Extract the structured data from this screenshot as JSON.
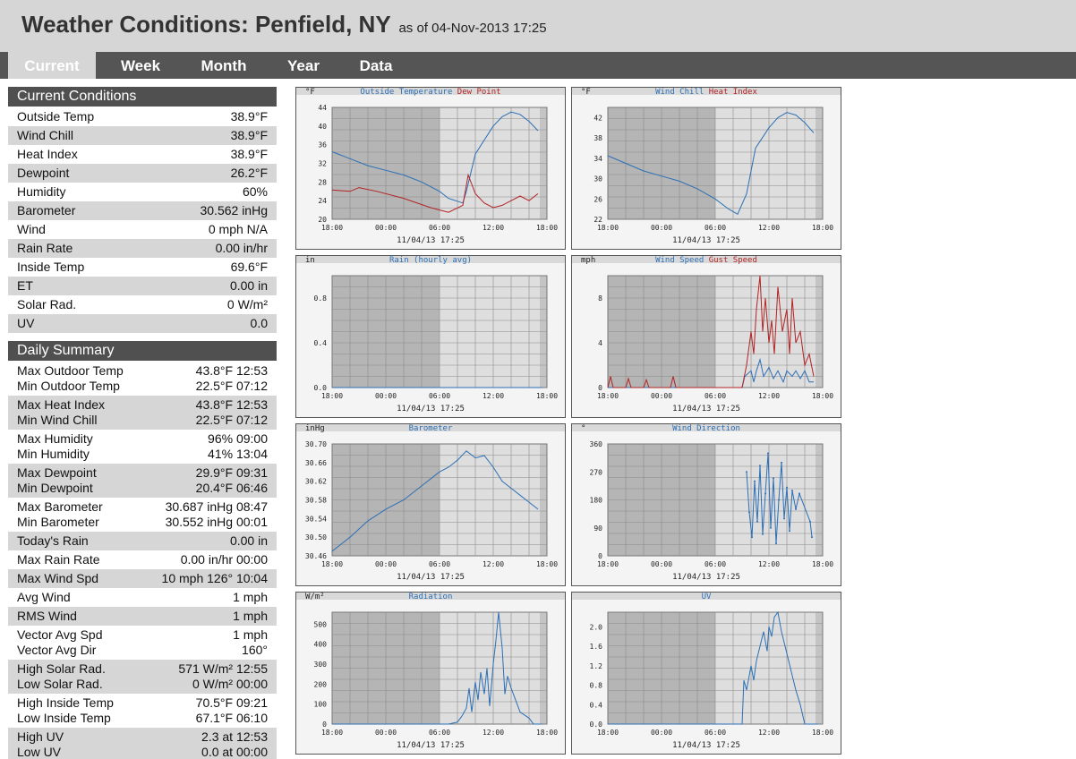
{
  "header": {
    "title": "Weather Conditions: Penfield, NY",
    "as_of": "as of 04-Nov-2013 17:25"
  },
  "nav": {
    "tabs": [
      "Current",
      "Week",
      "Month",
      "Year",
      "Data"
    ],
    "active": "Current"
  },
  "current": {
    "title": "Current Conditions",
    "rows": [
      {
        "label": "Outside Temp",
        "value": "38.9°F"
      },
      {
        "label": "Wind Chill",
        "value": "38.9°F"
      },
      {
        "label": "Heat Index",
        "value": "38.9°F"
      },
      {
        "label": "Dewpoint",
        "value": "26.2°F"
      },
      {
        "label": "Humidity",
        "value": "60%"
      },
      {
        "label": "Barometer",
        "value": "30.562 inHg"
      },
      {
        "label": "Wind",
        "value": "0 mph N/A"
      },
      {
        "label": "Rain Rate",
        "value": "0.00 in/hr"
      },
      {
        "label": "Inside Temp",
        "value": "69.6°F"
      },
      {
        "label": "ET",
        "value": "0.00 in"
      },
      {
        "label": "Solar Rad.",
        "value": "0 W/m²"
      },
      {
        "label": "UV",
        "value": "0.0"
      }
    ]
  },
  "daily": {
    "title": "Daily Summary",
    "groups": [
      {
        "lines": [
          {
            "label": "Max Outdoor Temp",
            "value": "43.8°F 12:53"
          },
          {
            "label": "Min Outdoor Temp",
            "value": "22.5°F 07:12"
          }
        ]
      },
      {
        "lines": [
          {
            "label": "Max Heat Index",
            "value": "43.8°F 12:53"
          },
          {
            "label": "Min Wind Chill",
            "value": "22.5°F 07:12"
          }
        ]
      },
      {
        "lines": [
          {
            "label": "Max Humidity",
            "value": "96% 09:00"
          },
          {
            "label": "Min Humidity",
            "value": "41% 13:04"
          }
        ]
      },
      {
        "lines": [
          {
            "label": "Max Dewpoint",
            "value": "29.9°F 09:31"
          },
          {
            "label": "Min Dewpoint",
            "value": "20.4°F 06:46"
          }
        ]
      },
      {
        "lines": [
          {
            "label": "Max Barometer",
            "value": "30.687 inHg 08:47"
          },
          {
            "label": "Min Barometer",
            "value": "30.552 inHg 00:01"
          }
        ]
      },
      {
        "lines": [
          {
            "label": "Today's Rain",
            "value": "0.00 in"
          }
        ]
      },
      {
        "lines": [
          {
            "label": "Max Rain Rate",
            "value": "0.00 in/hr 00:00"
          }
        ]
      },
      {
        "lines": [
          {
            "label": "Max Wind Spd",
            "value": "10 mph 126° 10:04"
          }
        ]
      },
      {
        "lines": [
          {
            "label": "Avg Wind",
            "value": "1 mph"
          }
        ]
      },
      {
        "lines": [
          {
            "label": "RMS Wind",
            "value": "1 mph"
          }
        ]
      },
      {
        "lines": [
          {
            "label": "Vector Avg Spd",
            "value": "1 mph"
          },
          {
            "label": "Vector Avg Dir",
            "value": "160°"
          }
        ]
      },
      {
        "lines": [
          {
            "label": "High Solar Rad.",
            "value": "571 W/m² 12:55"
          },
          {
            "label": "Low Solar Rad.",
            "value": "0 W/m² 00:00"
          }
        ]
      },
      {
        "lines": [
          {
            "label": "High Inside Temp",
            "value": "70.5°F 09:21"
          },
          {
            "label": "Low Inside Temp",
            "value": "67.1°F 06:10"
          }
        ]
      },
      {
        "lines": [
          {
            "label": "High UV",
            "value": "2.3 at 12:53"
          },
          {
            "label": "Low UV",
            "value": "0.0 at 00:00"
          }
        ]
      }
    ]
  },
  "colors": {
    "blue": "#2b6fb5",
    "red": "#b22222",
    "header_bg": "#d6d6d6",
    "nav_bg": "#555555",
    "section_bg": "#505050"
  },
  "chart_data": [
    {
      "type": "line",
      "title": "",
      "unit": "°F",
      "legend": [
        {
          "name": "Outside Temperature",
          "color": "#2b6fb5"
        },
        {
          "name": "Dew Point",
          "color": "#b22222"
        }
      ],
      "x_ticks": [
        "18:00",
        "00:00",
        "06:00",
        "12:00",
        "18:00"
      ],
      "y_ticks": [
        "20",
        "24",
        "28",
        "32",
        "36",
        "40",
        "44"
      ],
      "ylim": [
        20,
        44
      ],
      "timestamp": "11/04/13 17:25",
      "series": [
        {
          "name": "Outside Temperature",
          "color": "#2b6fb5",
          "x": [
            0,
            2,
            4,
            6,
            8,
            10,
            12,
            13,
            14.6,
            15,
            16,
            18,
            19,
            20,
            21,
            22,
            23
          ],
          "y": [
            34.5,
            33,
            31.5,
            30.5,
            29.5,
            28,
            26,
            24.5,
            23.5,
            26,
            34,
            40,
            42,
            43,
            42.5,
            41,
            39
          ]
        },
        {
          "name": "Dew Point",
          "color": "#b22222",
          "x": [
            0,
            2,
            3,
            5,
            8,
            11,
            13,
            14.6,
            15.2,
            16,
            17,
            18,
            19,
            20,
            21,
            22,
            23
          ],
          "y": [
            26.3,
            26,
            26.8,
            26,
            24.5,
            22.5,
            21.5,
            23,
            29.5,
            25.5,
            23.5,
            22.5,
            23,
            24,
            25,
            24,
            25.5
          ]
        }
      ]
    },
    {
      "type": "line",
      "title": "",
      "unit": "°F",
      "legend": [
        {
          "name": "Wind Chill",
          "color": "#2b6fb5"
        },
        {
          "name": "Heat Index",
          "color": "#b22222"
        }
      ],
      "x_ticks": [
        "18:00",
        "00:00",
        "06:00",
        "12:00",
        "18:00"
      ],
      "y_ticks": [
        "22",
        "26",
        "30",
        "34",
        "38",
        "42"
      ],
      "ylim": [
        22,
        44
      ],
      "timestamp": "11/04/13 17:25",
      "series": [
        {
          "name": "Wind Chill",
          "color": "#2b6fb5",
          "x": [
            0,
            2,
            4,
            6,
            8,
            10,
            12,
            13.5,
            14.5,
            15.5,
            16.5,
            18,
            19,
            20,
            21,
            22,
            23
          ],
          "y": [
            34.5,
            33,
            31.5,
            30.5,
            29.5,
            28,
            26,
            24,
            23,
            27,
            36,
            40,
            42,
            43,
            42.5,
            41,
            39
          ]
        }
      ]
    },
    {
      "type": "line",
      "title": "",
      "unit": "in",
      "legend": [
        {
          "name": "Rain (hourly avg)",
          "color": "#2b6fb5"
        }
      ],
      "x_ticks": [
        "18:00",
        "00:00",
        "06:00",
        "12:00",
        "18:00"
      ],
      "y_ticks": [
        "0.0",
        "0.4",
        "0.8"
      ],
      "ylim": [
        0,
        1.0
      ],
      "timestamp": "11/04/13 17:25",
      "series": [
        {
          "name": "Rain (hourly avg)",
          "color": "#2b6fb5",
          "x": [
            0,
            23.5
          ],
          "y": [
            0,
            0
          ]
        }
      ]
    },
    {
      "type": "line",
      "title": "",
      "unit": "mph",
      "legend": [
        {
          "name": "Wind Speed",
          "color": "#2b6fb5"
        },
        {
          "name": "Gust Speed",
          "color": "#b22222"
        }
      ],
      "x_ticks": [
        "18:00",
        "00:00",
        "06:00",
        "12:00",
        "18:00"
      ],
      "y_ticks": [
        "0",
        "4",
        "8"
      ],
      "ylim": [
        0,
        10
      ],
      "timestamp": "11/04/13 17:25",
      "series": [
        {
          "name": "Wind Speed",
          "color": "#2b6fb5",
          "x": [
            0,
            15,
            15.3,
            16,
            16.3,
            16.6,
            17,
            17.4,
            18,
            18.5,
            19,
            19.6,
            20,
            20.6,
            21,
            21.5,
            22,
            22.5,
            23
          ],
          "y": [
            0,
            0,
            1,
            1.5,
            0.5,
            1.5,
            2.5,
            1,
            1.8,
            0.8,
            1.5,
            0.5,
            1.5,
            1,
            1.5,
            0.8,
            1.5,
            0.5,
            0.5
          ]
        },
        {
          "name": "Gust Speed",
          "color": "#b22222",
          "x": [
            0,
            0.3,
            0.6,
            1,
            2,
            2.3,
            2.6,
            4,
            4.3,
            4.6,
            6,
            7,
            7.3,
            7.6,
            8,
            15,
            15.5,
            16,
            16.3,
            16.6,
            17,
            17.3,
            17.6,
            18,
            18.3,
            18.6,
            19,
            19.5,
            20,
            20.3,
            20.6,
            21,
            21.5,
            22,
            22.5,
            23
          ],
          "y": [
            0,
            1,
            0,
            0,
            0,
            0.8,
            0,
            0,
            0.7,
            0,
            0,
            0,
            1,
            0,
            0,
            0,
            2,
            5,
            3,
            7,
            10,
            5,
            8,
            4,
            6,
            3,
            9,
            5,
            7,
            3,
            8,
            4,
            5,
            2,
            3,
            1
          ]
        }
      ]
    },
    {
      "type": "line",
      "title": "",
      "unit": "inHg",
      "legend": [
        {
          "name": "Barometer",
          "color": "#2b6fb5"
        }
      ],
      "x_ticks": [
        "18:00",
        "00:00",
        "06:00",
        "12:00",
        "18:00"
      ],
      "y_ticks": [
        "30.46",
        "30.50",
        "30.54",
        "30.58",
        "30.62",
        "30.66",
        "30.70"
      ],
      "ylim": [
        30.46,
        30.7
      ],
      "timestamp": "11/04/13 17:25",
      "series": [
        {
          "name": "Barometer",
          "color": "#2b6fb5",
          "x": [
            0,
            2,
            4,
            6,
            8,
            10,
            12,
            13,
            14,
            15,
            16,
            17,
            18,
            19,
            20,
            21,
            22,
            23
          ],
          "y": [
            30.47,
            30.5,
            30.535,
            30.56,
            30.58,
            30.61,
            30.64,
            30.65,
            30.665,
            30.685,
            30.67,
            30.675,
            30.65,
            30.62,
            30.605,
            30.59,
            30.575,
            30.56
          ]
        }
      ]
    },
    {
      "type": "scatter",
      "title": "",
      "unit": "°",
      "legend": [
        {
          "name": "Wind Direction",
          "color": "#2b6fb5"
        }
      ],
      "x_ticks": [
        "18:00",
        "00:00",
        "06:00",
        "12:00",
        "18:00"
      ],
      "y_ticks": [
        "0",
        "90",
        "180",
        "270",
        "360"
      ],
      "ylim": [
        0,
        360
      ],
      "timestamp": "11/04/13 17:25",
      "series": [
        {
          "name": "Wind Direction",
          "color": "#2b6fb5",
          "x": [
            15.5,
            15.8,
            16.1,
            16.4,
            16.7,
            17,
            17.3,
            17.6,
            17.9,
            18.2,
            18.5,
            18.8,
            19.1,
            19.4,
            19.7,
            20,
            20.3,
            20.6,
            21,
            21.4,
            22.6,
            22.8
          ],
          "y": [
            270,
            140,
            60,
            240,
            110,
            290,
            70,
            200,
            330,
            90,
            250,
            40,
            180,
            300,
            120,
            220,
            80,
            210,
            150,
            200,
            110,
            60
          ]
        }
      ]
    },
    {
      "type": "line",
      "title": "",
      "unit": "W/m²",
      "legend": [
        {
          "name": "Radiation",
          "color": "#2b6fb5"
        }
      ],
      "x_ticks": [
        "18:00",
        "00:00",
        "06:00",
        "12:00",
        "18:00"
      ],
      "y_ticks": [
        "0",
        "100",
        "200",
        "300",
        "400",
        "500"
      ],
      "ylim": [
        0,
        560
      ],
      "timestamp": "11/04/13 17:25",
      "series": [
        {
          "name": "Radiation",
          "color": "#2b6fb5",
          "x": [
            0,
            13,
            14,
            14.5,
            15,
            15.3,
            15.6,
            16,
            16.3,
            16.6,
            17,
            17.3,
            17.6,
            18,
            18.3,
            18.6,
            19,
            19.3,
            19.6,
            20,
            20.5,
            21,
            22,
            22.5,
            23.5
          ],
          "y": [
            0,
            0,
            10,
            40,
            80,
            180,
            60,
            210,
            120,
            260,
            150,
            280,
            90,
            300,
            420,
            571,
            380,
            150,
            240,
            180,
            120,
            60,
            30,
            0,
            0
          ]
        }
      ]
    },
    {
      "type": "line",
      "title": "",
      "unit": "",
      "legend": [
        {
          "name": "UV",
          "color": "#2b6fb5"
        }
      ],
      "x_ticks": [
        "18:00",
        "00:00",
        "06:00",
        "12:00",
        "18:00"
      ],
      "y_ticks": [
        "0.0",
        "0.4",
        "0.8",
        "1.2",
        "1.6",
        "2.0"
      ],
      "ylim": [
        0,
        2.3
      ],
      "timestamp": "11/04/13 17:25",
      "series": [
        {
          "name": "UV",
          "color": "#2b6fb5",
          "x": [
            0,
            15,
            15.2,
            15.5,
            16,
            16.3,
            16.6,
            17,
            17.4,
            17.8,
            18,
            18.3,
            18.6,
            19,
            19.4,
            19.8,
            20.2,
            20.6,
            21,
            21.5,
            22,
            22.4,
            23.5
          ],
          "y": [
            0,
            0,
            0.9,
            0.7,
            1.2,
            0.9,
            1.3,
            1.6,
            1.9,
            1.5,
            2.0,
            1.8,
            2.2,
            2.3,
            1.9,
            1.6,
            1.3,
            1.0,
            0.7,
            0.4,
            0,
            0,
            0
          ]
        }
      ]
    }
  ]
}
